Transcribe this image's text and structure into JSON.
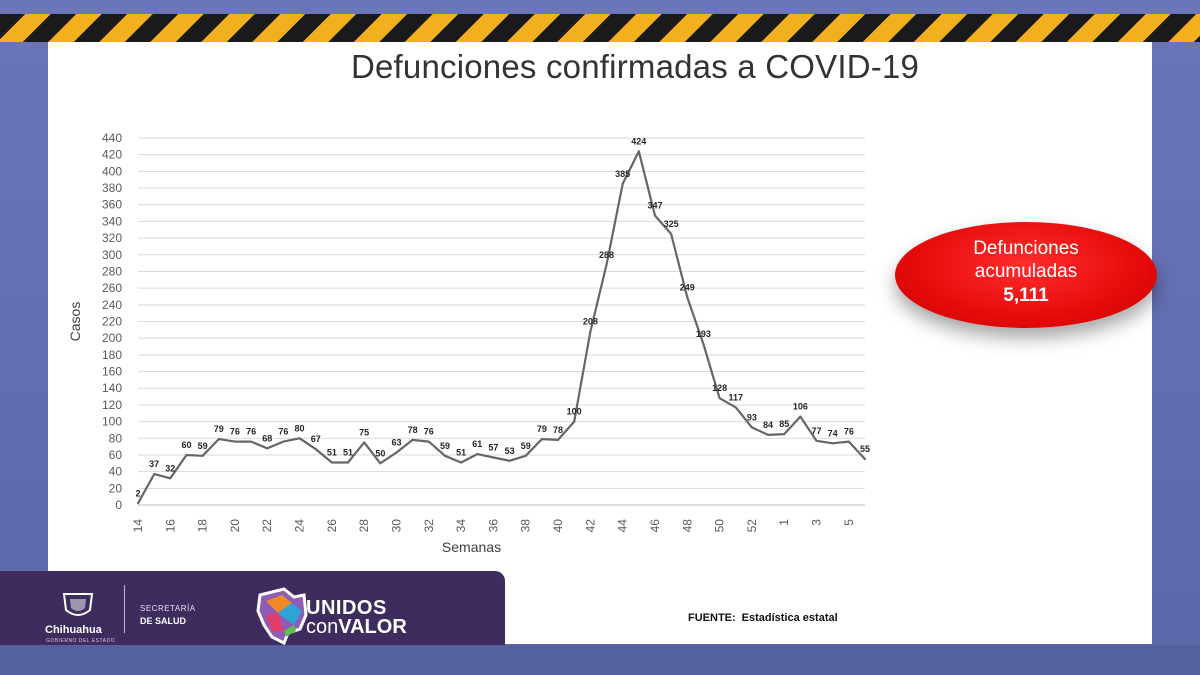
{
  "title": "Defunciones confirmadas a COVID-19",
  "badge": {
    "line1": "Defunciones",
    "line2": "acumuladas",
    "total": "5,111"
  },
  "source": {
    "label": "FUENTE:",
    "text": "Estadística estatal"
  },
  "footer": {
    "state": "Chihuahua",
    "state_sub": "GOBIERNO DEL ESTADO",
    "secretaria_line1": "SECRETARÍA",
    "secretaria_line2": "DE SALUD",
    "slogan_line1": "UNIDOS",
    "slogan_line2a": "con",
    "slogan_line2b": "VALOR"
  },
  "colors": {
    "line": "#666666",
    "badge": "#e60b0b",
    "footer_bg": "#3f2c5e",
    "hazard_yellow": "#f2b01e"
  },
  "chart_data": {
    "type": "line",
    "title": "Defunciones confirmadas a COVID-19",
    "xlabel": "Semanas",
    "ylabel": "Casos",
    "ylim": [
      0,
      440
    ],
    "yticks": [
      0,
      20,
      40,
      60,
      80,
      100,
      120,
      140,
      160,
      180,
      200,
      220,
      240,
      260,
      280,
      300,
      320,
      340,
      360,
      380,
      400,
      420,
      440
    ],
    "x_tick_labels": [
      "14",
      "16",
      "18",
      "20",
      "22",
      "24",
      "26",
      "28",
      "30",
      "32",
      "34",
      "36",
      "38",
      "40",
      "42",
      "44",
      "46",
      "48",
      "50",
      "52",
      "1",
      "3",
      "5"
    ],
    "x": [
      "14",
      "15",
      "16",
      "17",
      "18",
      "19",
      "20",
      "21",
      "22",
      "23",
      "24",
      "25",
      "26",
      "27",
      "28",
      "29",
      "30",
      "31",
      "32",
      "33",
      "34",
      "35",
      "36",
      "37",
      "38",
      "39",
      "40",
      "41",
      "42",
      "43",
      "44",
      "45",
      "46",
      "47",
      "48",
      "49",
      "50",
      "51",
      "52",
      "53",
      "1",
      "2",
      "3",
      "4",
      "5",
      "6"
    ],
    "values": [
      2,
      37,
      32,
      60,
      59,
      79,
      76,
      76,
      68,
      76,
      80,
      67,
      51,
      51,
      75,
      50,
      63,
      78,
      76,
      59,
      51,
      61,
      57,
      53,
      59,
      79,
      78,
      100,
      208,
      288,
      385,
      424,
      347,
      325,
      249,
      193,
      128,
      117,
      93,
      84,
      85,
      106,
      77,
      74,
      76,
      55
    ],
    "data_labels": [
      "2",
      "37",
      "32",
      "60",
      "59",
      "79",
      "76",
      "76",
      "68",
      "76",
      "80",
      "67",
      "51",
      "51",
      "75",
      "50",
      "63",
      "78",
      "76",
      "59",
      "51",
      "61",
      "57",
      "53",
      "59",
      "79",
      "78",
      "100",
      "208",
      "288",
      "385",
      "424",
      "347",
      "325",
      "249",
      "193",
      "128",
      "117",
      "93",
      "84",
      "85",
      "106",
      "77",
      "74",
      "76",
      "55"
    ],
    "grid": true
  }
}
